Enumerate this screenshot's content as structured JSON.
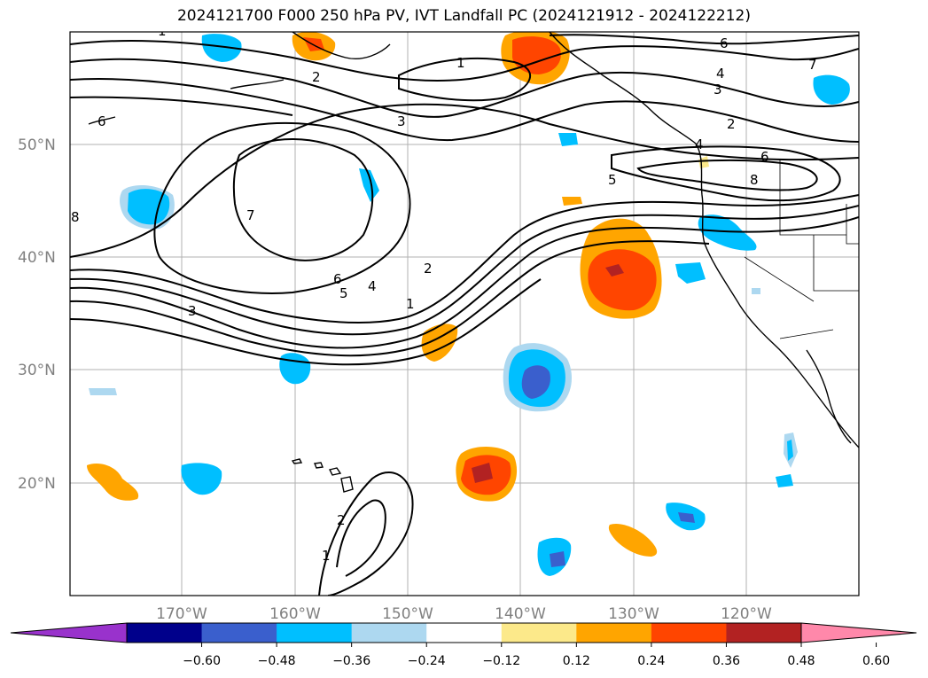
{
  "title": "2024121700 F000 250 hPa PV, IVT Landfall PC (2024121912 - 2024122212)",
  "lat_ticks": [
    "50°N",
    "40°N",
    "30°N",
    "20°N"
  ],
  "lon_ticks": [
    "170°W",
    "160°W",
    "150°W",
    "140°W",
    "130°W",
    "120°W"
  ],
  "contour_levels": [
    "1",
    "2",
    "3",
    "4",
    "5",
    "6",
    "7",
    "8"
  ],
  "colorbar": {
    "ticks": [
      "−0.60",
      "−0.48",
      "−0.36",
      "−0.24",
      "−0.12",
      "0.12",
      "0.24",
      "0.36",
      "0.48",
      "0.60"
    ],
    "colors": [
      "#9932cc",
      "#00008b",
      "#3a5fcd",
      "#00bfff",
      "#add8f0",
      "#ffffff",
      "#fce98a",
      "#ffa500",
      "#ff4500",
      "#b22222",
      "#ff88aa"
    ]
  }
}
